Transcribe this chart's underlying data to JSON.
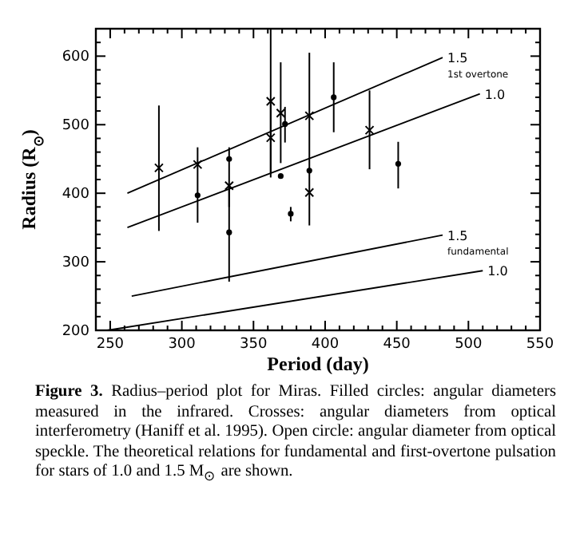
{
  "chart_data": {
    "type": "scatter",
    "xlabel": "Period (day)",
    "ylabel": "Radius (R$_{⊙}$)",
    "xlim": [
      240,
      550
    ],
    "ylim": [
      200,
      640
    ],
    "xticks": [
      250,
      {
        "value": 260,
        "label": null
      },
      {
        "value": 270,
        "label": null
      },
      {
        "value": 280,
        "label": null
      },
      {
        "value": 290,
        "label": null
      },
      300,
      {
        "value": 310,
        "label": null
      },
      {
        "value": 320,
        "label": null
      },
      {
        "value": 330,
        "label": null
      },
      {
        "value": 340,
        "label": null
      },
      350,
      {
        "value": 360,
        "label": null
      },
      {
        "value": 370,
        "label": null
      },
      {
        "value": 380,
        "label": null
      },
      {
        "value": 390,
        "label": null
      },
      400,
      {
        "value": 410,
        "label": null
      },
      {
        "value": 420,
        "label": null
      },
      {
        "value": 430,
        "label": null
      },
      {
        "value": 440,
        "label": null
      },
      450,
      {
        "value": 460,
        "label": null
      },
      {
        "value": 470,
        "label": null
      },
      {
        "value": 480,
        "label": null
      },
      {
        "value": 490,
        "label": null
      },
      500,
      {
        "value": 510,
        "label": null
      },
      {
        "value": 520,
        "label": null
      },
      {
        "value": 530,
        "label": null
      },
      {
        "value": 540,
        "label": null
      },
      550
    ],
    "yticks": [
      200,
      {
        "value": 220,
        "label": null
      },
      {
        "value": 240,
        "label": null
      },
      {
        "value": 260,
        "label": null
      },
      {
        "value": 280,
        "label": null
      },
      300,
      {
        "value": 320,
        "label": null
      },
      {
        "value": 340,
        "label": null
      },
      {
        "value": 360,
        "label": null
      },
      {
        "value": 380,
        "label": null
      },
      400,
      {
        "value": 420,
        "label": null
      },
      {
        "value": 440,
        "label": null
      },
      {
        "value": 460,
        "label": null
      },
      {
        "value": 480,
        "label": null
      },
      500,
      {
        "value": 520,
        "label": null
      },
      {
        "value": 540,
        "label": null
      },
      {
        "value": 560,
        "label": null
      },
      {
        "value": 580,
        "label": null
      },
      600,
      {
        "value": 620,
        "label": null
      }
    ],
    "grid": false,
    "series": [
      {
        "marker": "circle",
        "color": "#000000",
        "x": [
          311,
          333,
          333,
          369,
          372,
          376,
          389,
          406,
          451
        ],
        "values": [
          397,
          450,
          343,
          425,
          501,
          370,
          433,
          540,
          443
        ],
        "errors": [
          [
            357,
            467
          ],
          null,
          [
            271,
            410
          ],
          null,
          [
            474,
            526
          ],
          [
            359,
            380
          ],
          null,
          [
            489,
            591
          ],
          [
            407,
            475
          ]
        ]
      },
      {
        "marker": "cross",
        "color": "#000000",
        "x": [
          284,
          311,
          333,
          362,
          362,
          369,
          389,
          389,
          431
        ],
        "values": [
          437,
          442,
          411,
          534,
          481,
          517,
          513,
          401,
          492
        ],
        "errors": [
          [
            345,
            528
          ],
          null,
          [
            380,
            467
          ],
          [
            430,
            640
          ],
          [
            423,
            530
          ],
          [
            444,
            591
          ],
          [
            353,
            605
          ],
          null,
          [
            435,
            550
          ]
        ]
      },
      {
        "type": "line",
        "name": "1.5",
        "color": "#000000",
        "x": [
          262,
          482
        ],
        "values": [
          400,
          598
        ]
      },
      {
        "type": "line",
        "name": "1.0",
        "color": "#000000",
        "x": [
          262,
          508
        ],
        "values": [
          350,
          545
        ]
      },
      {
        "type": "line",
        "name": "1.5",
        "color": "#000000",
        "x": [
          265,
          482
        ],
        "values": [
          250,
          339
        ]
      },
      {
        "type": "line",
        "name": "1.0",
        "color": "#000000",
        "x": [
          248,
          510
        ],
        "values": [
          200,
          287
        ]
      }
    ],
    "annotations": [
      "1st overtone",
      "fundamental",
      "Figure 3. Radius–period plot for Miras. Filled circles: angular diameters measured in the infrared. Crosses: angular diameters from optical interferometry (Haniff et al. 1995). Open circle: angular diameter from optical speckle. The theoretical relations for fundamental and first-overtone pulsation for stars of 1.0 and 1.5 M$_{⊙}$ are shown."
    ]
  }
}
